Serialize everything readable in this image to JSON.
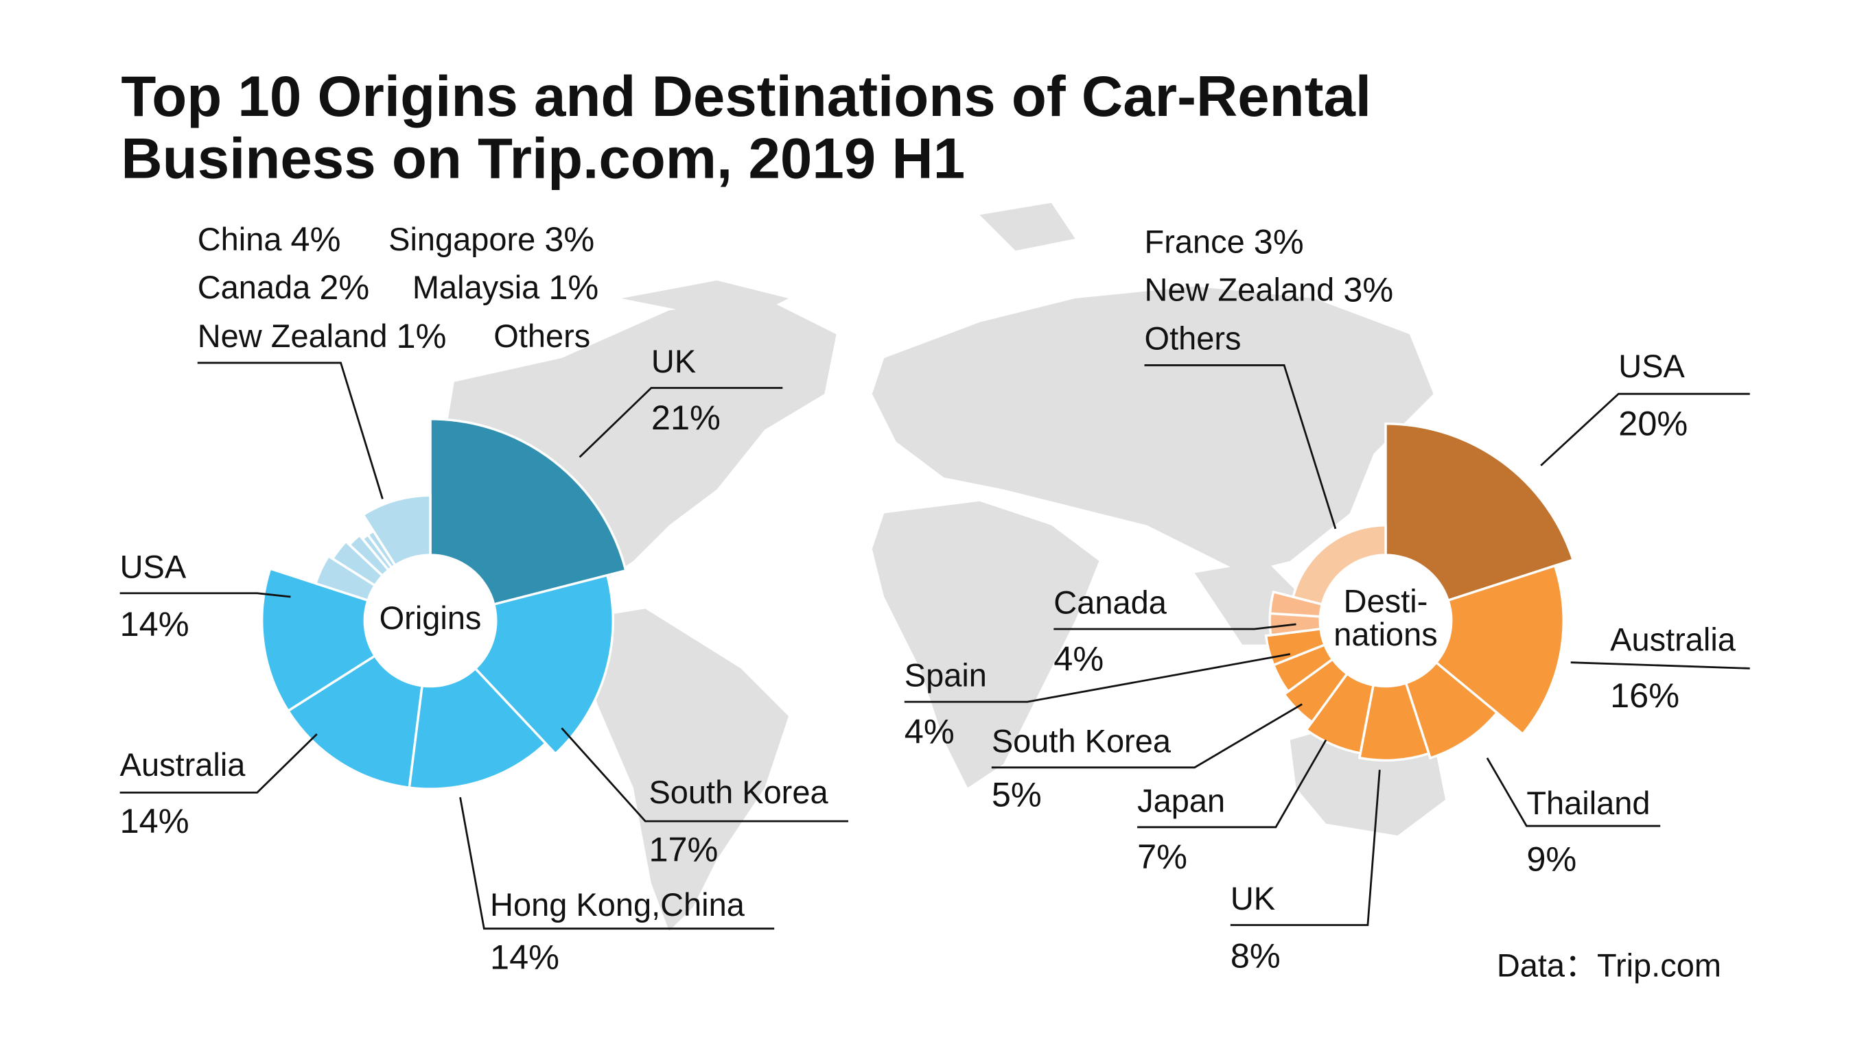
{
  "title": "Top 10 Origins and Destinations of Car-Rental Business on Trip.com, 2019 H1",
  "source": "Data：Trip.com",
  "chart_data": [
    {
      "type": "pie",
      "title": "Origins",
      "categories": [
        "UK",
        "South Korea",
        "Hong Kong,China",
        "Australia",
        "USA",
        "China",
        "Singapore",
        "Canada",
        "Malaysia",
        "New Zealand",
        "Others"
      ],
      "values": [
        21,
        17,
        14,
        14,
        14,
        4,
        3,
        2,
        1,
        1,
        9
      ],
      "value_labels": [
        "21%",
        "17%",
        "14%",
        "14%",
        "14%",
        "4%",
        "3%",
        "2%",
        "1%",
        "1%",
        null
      ],
      "colors": [
        "#318fb0",
        "#41c0ef",
        "#41c0ef",
        "#41c0ef",
        "#41c0ef",
        "#b3ddee",
        "#b3ddee",
        "#b3ddee",
        "#b3ddee",
        "#b3ddee",
        "#b3ddee"
      ]
    },
    {
      "type": "pie",
      "title": "Desti- nations",
      "categories": [
        "USA",
        "Australia",
        "Thailand",
        "UK",
        "Japan",
        "South Korea",
        "Spain",
        "Canada",
        "France",
        "New Zealand",
        "Others"
      ],
      "values": [
        20,
        16,
        9,
        8,
        7,
        5,
        4,
        4,
        3,
        3,
        21
      ],
      "value_labels": [
        "20%",
        "16%",
        "9%",
        "8%",
        "7%",
        "5%",
        "4%",
        "4%",
        "3%",
        "3%",
        null
      ],
      "colors": [
        "#c07430",
        "#f7983a",
        "#f7983a",
        "#f7983a",
        "#f7983a",
        "#f7983a",
        "#f7983a",
        "#f7983a",
        "#f9b98a",
        "#f9b98a",
        "#f8c8a0"
      ]
    }
  ]
}
